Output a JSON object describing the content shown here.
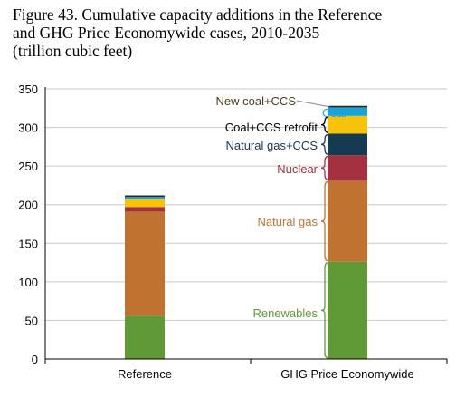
{
  "title_lines": [
    "Figure 43. Cumulative capacity additions in the Reference",
    "and GHG Price Economywide cases, 2010-2035",
    "(trillion cubic feet)"
  ],
  "chart_data": {
    "type": "bar",
    "stacked": true,
    "title": "Figure 43. Cumulative capacity additions in the Reference and GHG Price Economywide cases, 2010-2035 (trillion cubic feet)",
    "categories": [
      "Reference",
      "GHG Price Economywide"
    ],
    "ylim": [
      0,
      350
    ],
    "yticks": [
      0,
      50,
      100,
      150,
      200,
      250,
      300,
      350
    ],
    "grid": true,
    "series": [
      {
        "name": "Renewables",
        "color": "#5f9a37",
        "label_color": "#5f9a37",
        "values": [
          56,
          126
        ]
      },
      {
        "name": "Natural gas",
        "color": "#c07230",
        "label_color": "#c07230",
        "values": [
          135,
          105
        ]
      },
      {
        "name": "Nuclear",
        "color": "#a3313f",
        "label_color": "#a3313f",
        "values": [
          6,
          33
        ]
      },
      {
        "name": "Natural gas+CCS",
        "color": "#153a52",
        "label_color": "#153a52",
        "values": [
          0,
          28
        ]
      },
      {
        "name": "Coal+CCS retrofit",
        "color": "#f7c309",
        "label_color": "#000000",
        "values": [
          10,
          23
        ]
      },
      {
        "name": "Coal",
        "color": "#1aa3d8",
        "label_color": "#1aa3d8",
        "values": [
          3,
          11
        ]
      },
      {
        "name": "New coal+CCS",
        "color": "#2a2a1e",
        "label_color": "#4a3d1c",
        "values": [
          2,
          2
        ]
      }
    ]
  }
}
